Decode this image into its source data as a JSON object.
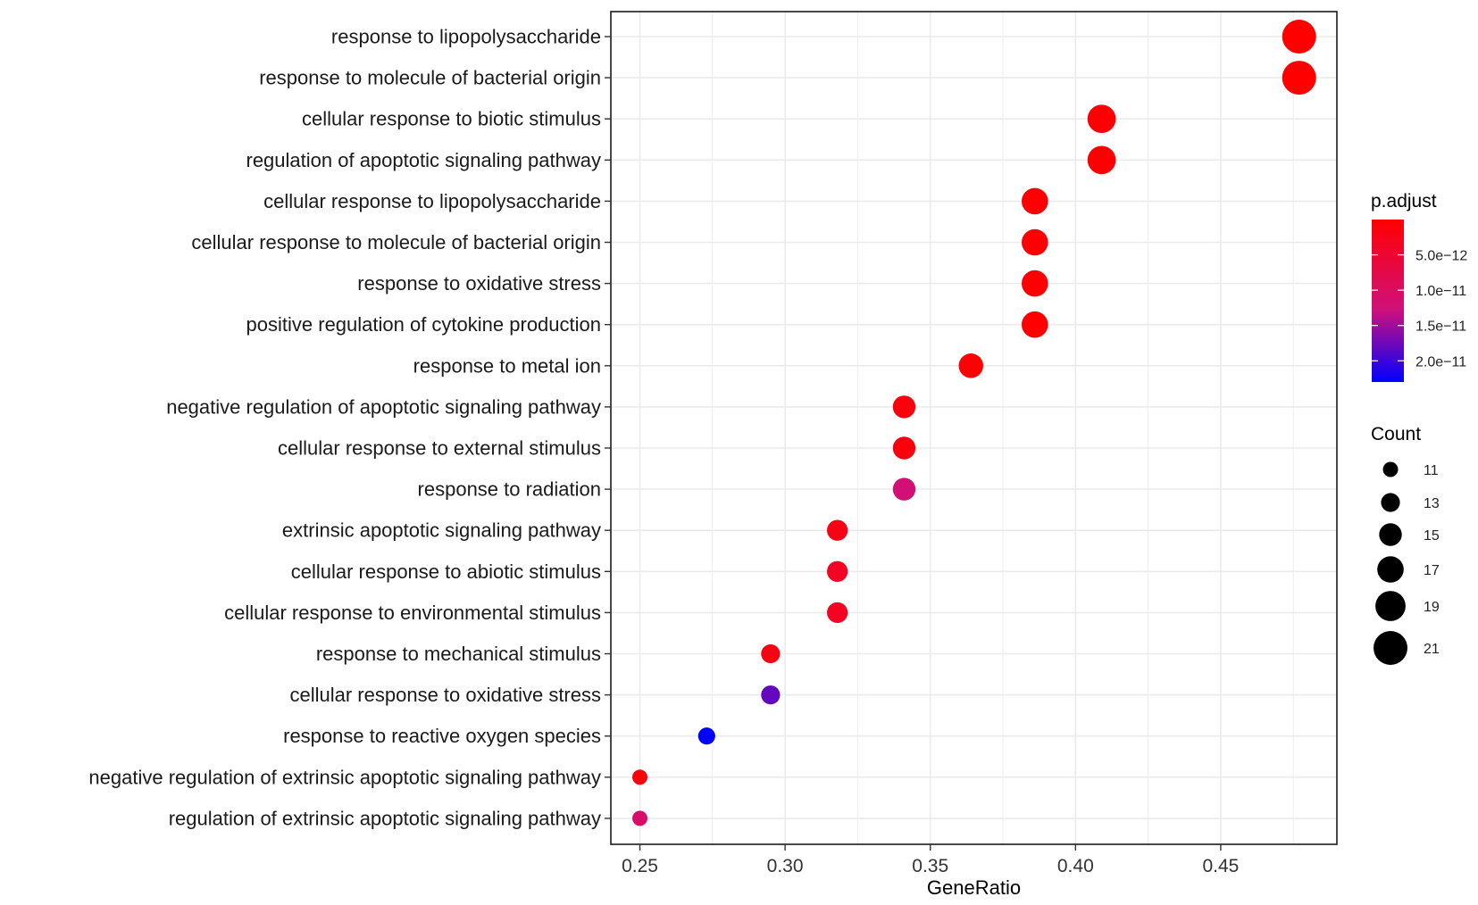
{
  "chart_data": {
    "type": "scatter",
    "xlabel": "GeneRatio",
    "ylabel": "",
    "xlim": [
      0.24,
      0.49
    ],
    "xticks": [
      0.25,
      0.3,
      0.35,
      0.4,
      0.45
    ],
    "xtick_labels": [
      "0.25",
      "0.30",
      "0.35",
      "0.40",
      "0.45"
    ],
    "grid": true,
    "categories": [
      "response to lipopolysaccharide",
      "response to molecule of bacterial origin",
      "cellular response to biotic stimulus",
      "regulation of apoptotic signaling pathway",
      "cellular response to lipopolysaccharide",
      "cellular response to molecule of bacterial origin",
      "response to oxidative stress",
      "positive regulation of cytokine production",
      "response to metal ion",
      "negative regulation of apoptotic signaling pathway",
      "cellular response to external stimulus",
      "response to radiation",
      "extrinsic apoptotic signaling pathway",
      "cellular response to abiotic stimulus",
      "cellular response to environmental stimulus",
      "response to mechanical stimulus",
      "cellular response to oxidative stress",
      "response to reactive oxygen species",
      "negative regulation of extrinsic apoptotic signaling pathway",
      "regulation of extrinsic apoptotic signaling pathway"
    ],
    "gene_ratio": [
      0.477,
      0.477,
      0.409,
      0.409,
      0.386,
      0.386,
      0.386,
      0.386,
      0.364,
      0.341,
      0.341,
      0.341,
      0.318,
      0.318,
      0.318,
      0.295,
      0.295,
      0.273,
      0.25,
      0.25
    ],
    "count": [
      21,
      21,
      18,
      18,
      17,
      17,
      17,
      17,
      16,
      15,
      15,
      15,
      14,
      14,
      14,
      13,
      13,
      12,
      11,
      11
    ],
    "p_adjust": [
      1e-13,
      1e-13,
      3e-13,
      3e-13,
      3e-13,
      3e-13,
      3e-13,
      3e-13,
      4e-13,
      1.5e-12,
      1.5e-12,
      1.2e-11,
      2e-12,
      3.5e-12,
      3.5e-12,
      2e-12,
      1.8e-11,
      2.3e-11,
      1e-12,
      1.1e-11
    ],
    "color_legend": {
      "title": "p.adjust",
      "ticks": [
        5e-12,
        1e-11,
        1.5e-11,
        2e-11
      ],
      "tick_labels": [
        "5.0e−12",
        "1.0e−11",
        "1.5e−11",
        "2.0e−11"
      ],
      "range": [
        0,
        2.3e-11
      ],
      "low_color": "#ff0000",
      "high_color": "#0000ff"
    },
    "size_legend": {
      "title": "Count",
      "values": [
        11,
        13,
        15,
        17,
        19,
        21
      ],
      "labels": [
        "11",
        "13",
        "15",
        "17",
        "19",
        "21"
      ]
    },
    "point_color_ink": "#000000",
    "panel_border_color": "#1a1a1a",
    "grid_color": "#ebebeb"
  }
}
